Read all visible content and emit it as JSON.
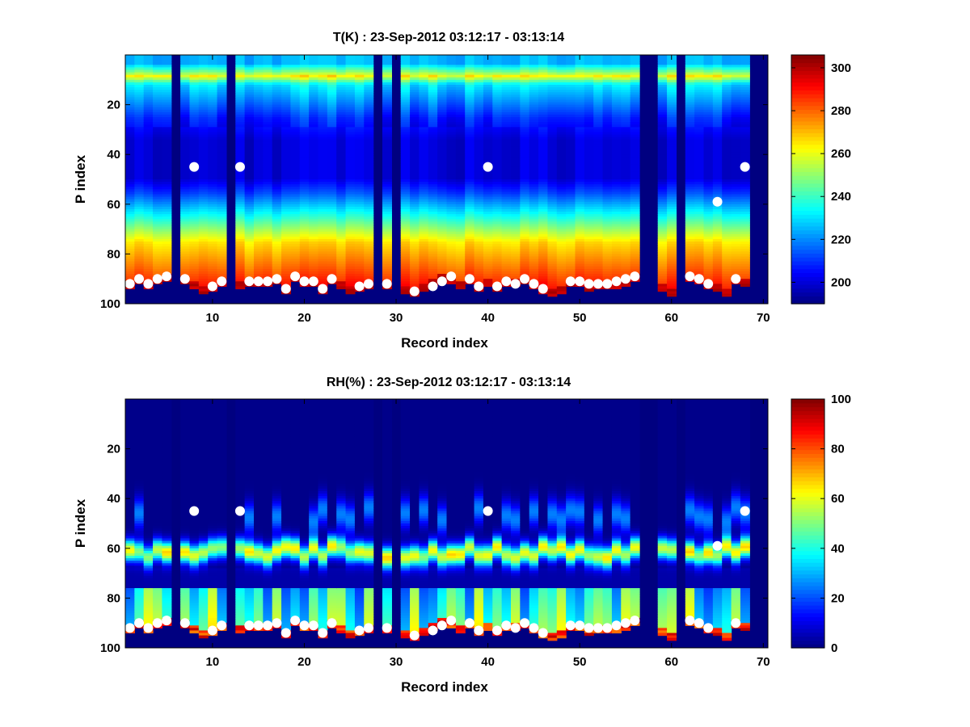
{
  "chart_data": [
    {
      "type": "heatmap",
      "id": "temperature",
      "title": "T(K) : 23-Sep-2012 03:12:17 - 03:13:14",
      "xlabel": "Record index",
      "ylabel": "P index",
      "xlim": [
        1,
        70
      ],
      "ylim": [
        0,
        100
      ],
      "xticks": [
        10,
        20,
        30,
        40,
        50,
        60,
        70
      ],
      "yticks": [
        20,
        40,
        60,
        80,
        100
      ],
      "colorbar": {
        "range": [
          190,
          306
        ],
        "ticks": [
          200,
          220,
          240,
          260,
          280,
          300
        ]
      },
      "missing_records": [
        6,
        12,
        28,
        30,
        57,
        58,
        61,
        69,
        70
      ],
      "surface_p_index": [
        93,
        91,
        93,
        91,
        90,
        null,
        91,
        93,
        95,
        94,
        92,
        null,
        93,
        92,
        92,
        92,
        91,
        95,
        90,
        92,
        92,
        95,
        91,
        93,
        95,
        94,
        93,
        null,
        93,
        null,
        95,
        96,
        94,
        92,
        90,
        91,
        93,
        91,
        94,
        92,
        94,
        92,
        92,
        91,
        93,
        95,
        96,
        95,
        92,
        92,
        94,
        93,
        93,
        93,
        92,
        90,
        null,
        null,
        94,
        96,
        null,
        90,
        91,
        93,
        94,
        96,
        91,
        92,
        null,
        null
      ],
      "cloud_markers": [
        {
          "record": 8,
          "p": 45
        },
        {
          "record": 13,
          "p": 45
        },
        {
          "record": 40,
          "p": 45
        },
        {
          "record": 65,
          "p": 59
        },
        {
          "record": 68,
          "p": 45
        }
      ],
      "surface_markers": [
        {
          "record": 1,
          "p": 92
        },
        {
          "record": 2,
          "p": 90
        },
        {
          "record": 3,
          "p": 92
        },
        {
          "record": 4,
          "p": 90
        },
        {
          "record": 5,
          "p": 89
        },
        {
          "record": 7,
          "p": 90
        },
        {
          "record": 10,
          "p": 93
        },
        {
          "record": 11,
          "p": 91
        },
        {
          "record": 14,
          "p": 91
        },
        {
          "record": 15,
          "p": 91
        },
        {
          "record": 16,
          "p": 91
        },
        {
          "record": 17,
          "p": 90
        },
        {
          "record": 18,
          "p": 94
        },
        {
          "record": 19,
          "p": 89
        },
        {
          "record": 20,
          "p": 91
        },
        {
          "record": 21,
          "p": 91
        },
        {
          "record": 22,
          "p": 94
        },
        {
          "record": 23,
          "p": 90
        },
        {
          "record": 26,
          "p": 93
        },
        {
          "record": 27,
          "p": 92
        },
        {
          "record": 29,
          "p": 92
        },
        {
          "record": 32,
          "p": 95
        },
        {
          "record": 34,
          "p": 93
        },
        {
          "record": 35,
          "p": 91
        },
        {
          "record": 36,
          "p": 89
        },
        {
          "record": 38,
          "p": 90
        },
        {
          "record": 39,
          "p": 93
        },
        {
          "record": 41,
          "p": 93
        },
        {
          "record": 42,
          "p": 91
        },
        {
          "record": 43,
          "p": 92
        },
        {
          "record": 44,
          "p": 90
        },
        {
          "record": 45,
          "p": 92
        },
        {
          "record": 46,
          "p": 94
        },
        {
          "record": 49,
          "p": 91
        },
        {
          "record": 50,
          "p": 91
        },
        {
          "record": 51,
          "p": 92
        },
        {
          "record": 52,
          "p": 92
        },
        {
          "record": 53,
          "p": 92
        },
        {
          "record": 54,
          "p": 91
        },
        {
          "record": 55,
          "p": 90
        },
        {
          "record": 56,
          "p": 89
        },
        {
          "record": 62,
          "p": 89
        },
        {
          "record": 63,
          "p": 90
        },
        {
          "record": 64,
          "p": 92
        },
        {
          "record": 67,
          "p": 90
        }
      ]
    },
    {
      "type": "heatmap",
      "id": "humidity",
      "title": "RH(%) : 23-Sep-2012 03:12:17 - 03:13:14",
      "xlabel": "Record index",
      "ylabel": "P index",
      "xlim": [
        1,
        70
      ],
      "ylim": [
        0,
        100
      ],
      "xticks": [
        10,
        20,
        30,
        40,
        50,
        60,
        70
      ],
      "yticks": [
        20,
        40,
        60,
        80,
        100
      ],
      "colorbar": {
        "range": [
          0,
          100
        ],
        "ticks": [
          0,
          20,
          40,
          60,
          80,
          100
        ]
      },
      "moist_layer_center_p": 62,
      "missing_records": [
        6,
        12,
        28,
        30,
        57,
        58,
        61,
        69,
        70
      ],
      "surface_p_index": [
        93,
        91,
        93,
        91,
        90,
        null,
        91,
        93,
        95,
        94,
        92,
        null,
        93,
        92,
        92,
        92,
        91,
        95,
        90,
        92,
        92,
        95,
        91,
        93,
        95,
        94,
        93,
        null,
        93,
        null,
        95,
        96,
        94,
        92,
        90,
        91,
        93,
        91,
        94,
        92,
        94,
        92,
        92,
        91,
        93,
        95,
        96,
        95,
        92,
        92,
        94,
        93,
        93,
        93,
        92,
        90,
        null,
        null,
        94,
        96,
        null,
        90,
        91,
        93,
        94,
        96,
        91,
        92,
        null,
        null
      ],
      "cloud_markers": [
        {
          "record": 8,
          "p": 45
        },
        {
          "record": 13,
          "p": 45
        },
        {
          "record": 40,
          "p": 45
        },
        {
          "record": 65,
          "p": 59
        },
        {
          "record": 68,
          "p": 45
        }
      ],
      "surface_markers": [
        {
          "record": 1,
          "p": 92
        },
        {
          "record": 2,
          "p": 90
        },
        {
          "record": 3,
          "p": 92
        },
        {
          "record": 4,
          "p": 90
        },
        {
          "record": 5,
          "p": 89
        },
        {
          "record": 7,
          "p": 90
        },
        {
          "record": 10,
          "p": 93
        },
        {
          "record": 11,
          "p": 91
        },
        {
          "record": 14,
          "p": 91
        },
        {
          "record": 15,
          "p": 91
        },
        {
          "record": 16,
          "p": 91
        },
        {
          "record": 17,
          "p": 90
        },
        {
          "record": 18,
          "p": 94
        },
        {
          "record": 19,
          "p": 89
        },
        {
          "record": 20,
          "p": 91
        },
        {
          "record": 21,
          "p": 91
        },
        {
          "record": 22,
          "p": 94
        },
        {
          "record": 23,
          "p": 90
        },
        {
          "record": 26,
          "p": 93
        },
        {
          "record": 27,
          "p": 92
        },
        {
          "record": 29,
          "p": 92
        },
        {
          "record": 32,
          "p": 95
        },
        {
          "record": 34,
          "p": 93
        },
        {
          "record": 35,
          "p": 91
        },
        {
          "record": 36,
          "p": 89
        },
        {
          "record": 38,
          "p": 90
        },
        {
          "record": 39,
          "p": 93
        },
        {
          "record": 41,
          "p": 93
        },
        {
          "record": 42,
          "p": 91
        },
        {
          "record": 43,
          "p": 92
        },
        {
          "record": 44,
          "p": 90
        },
        {
          "record": 45,
          "p": 92
        },
        {
          "record": 46,
          "p": 94
        },
        {
          "record": 49,
          "p": 91
        },
        {
          "record": 50,
          "p": 91
        },
        {
          "record": 51,
          "p": 92
        },
        {
          "record": 52,
          "p": 92
        },
        {
          "record": 53,
          "p": 92
        },
        {
          "record": 54,
          "p": 91
        },
        {
          "record": 55,
          "p": 90
        },
        {
          "record": 56,
          "p": 89
        },
        {
          "record": 62,
          "p": 89
        },
        {
          "record": 63,
          "p": 90
        },
        {
          "record": 64,
          "p": 92
        },
        {
          "record": 67,
          "p": 90
        }
      ]
    }
  ]
}
